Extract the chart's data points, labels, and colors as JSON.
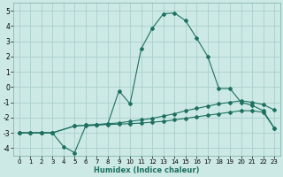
{
  "xlabel": "Humidex (Indice chaleur)",
  "xlim": [
    -0.5,
    23.5
  ],
  "ylim": [
    -4.5,
    5.5
  ],
  "yticks": [
    -4,
    -3,
    -2,
    -1,
    0,
    1,
    2,
    3,
    4,
    5
  ],
  "xticks": [
    0,
    1,
    2,
    3,
    4,
    5,
    6,
    7,
    8,
    9,
    10,
    11,
    12,
    13,
    14,
    15,
    16,
    17,
    18,
    19,
    20,
    21,
    22,
    23
  ],
  "bg_color": "#cce9e5",
  "grid_color": "#aacfcc",
  "line_color": "#1e7060",
  "line1_x": [
    0,
    1,
    2,
    3,
    4,
    5,
    6,
    7,
    8,
    9,
    10,
    11,
    12,
    13,
    14,
    15,
    16,
    17,
    18,
    19,
    20,
    21,
    22,
    23
  ],
  "line1_y": [
    -3.0,
    -3.0,
    -3.0,
    -3.0,
    -3.9,
    -4.3,
    -2.55,
    -2.5,
    -2.4,
    -0.25,
    -1.1,
    2.5,
    3.85,
    4.8,
    4.85,
    4.35,
    3.2,
    2.0,
    -0.1,
    -0.1,
    -1.0,
    -1.2,
    -1.55,
    -2.7
  ],
  "line2_x": [
    0,
    1,
    2,
    3,
    5,
    6,
    7,
    8,
    9,
    10,
    11,
    12,
    13,
    14,
    15,
    16,
    17,
    18,
    19,
    20,
    21,
    22,
    23
  ],
  "line2_y": [
    -3.0,
    -3.0,
    -3.0,
    -3.0,
    -2.55,
    -2.5,
    -2.45,
    -2.4,
    -2.35,
    -2.25,
    -2.15,
    -2.05,
    -1.9,
    -1.75,
    -1.55,
    -1.4,
    -1.25,
    -1.1,
    -1.0,
    -0.9,
    -1.0,
    -1.15,
    -1.5
  ],
  "line3_x": [
    0,
    1,
    2,
    3,
    5,
    6,
    7,
    8,
    9,
    10,
    11,
    12,
    13,
    14,
    15,
    16,
    17,
    18,
    19,
    20,
    21,
    22,
    23
  ],
  "line3_y": [
    -3.0,
    -3.0,
    -3.0,
    -3.0,
    -2.55,
    -2.5,
    -2.48,
    -2.46,
    -2.43,
    -2.4,
    -2.36,
    -2.3,
    -2.25,
    -2.15,
    -2.05,
    -1.95,
    -1.85,
    -1.75,
    -1.65,
    -1.55,
    -1.55,
    -1.65,
    -2.7
  ]
}
